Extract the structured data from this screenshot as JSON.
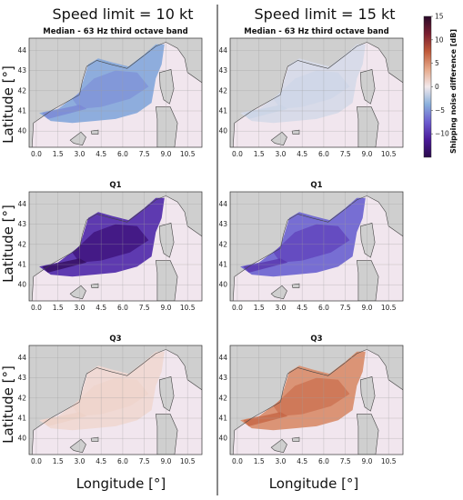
{
  "figure": {
    "column_titles": [
      "Speed limit = 10 kt",
      "Speed limit = 15 kt"
    ],
    "xlabel": "Longitude [°]",
    "ylabel": "Latitude [°]"
  },
  "chart_data": [
    {
      "type": "heatmap",
      "title": "Median - 63 Hz third octave band",
      "column": "Speed limit = 10 kt",
      "row": "Median",
      "typical_difference_dB": -4,
      "xticks": [
        "0.0",
        "1.5",
        "3.0",
        "4.5",
        "6.0",
        "7.5",
        "9.0",
        "10.5"
      ],
      "yticks": [
        "40",
        "41",
        "42",
        "43",
        "44"
      ],
      "xlim": [
        -0.5,
        11.5
      ],
      "ylim": [
        39.2,
        44.6
      ]
    },
    {
      "type": "heatmap",
      "title": "Median - 63 Hz third octave band",
      "column": "Speed limit = 15 kt",
      "row": "Median",
      "typical_difference_dB": -1,
      "xticks": [
        "0.0",
        "1.5",
        "3.0",
        "4.5",
        "6.0",
        "7.5",
        "9.0",
        "10.5"
      ],
      "yticks": [
        "40",
        "41",
        "42",
        "43",
        "44"
      ],
      "xlim": [
        -0.5,
        11.5
      ],
      "ylim": [
        39.2,
        44.6
      ]
    },
    {
      "type": "heatmap",
      "title": "Q1",
      "column": "Speed limit = 10 kt",
      "row": "Q1",
      "typical_difference_dB": -10,
      "xticks": [
        "0.0",
        "1.5",
        "3.0",
        "4.5",
        "6.0",
        "7.5",
        "9.0",
        "10.5"
      ],
      "yticks": [
        "40",
        "41",
        "42",
        "43",
        "44"
      ],
      "xlim": [
        -0.5,
        11.5
      ],
      "ylim": [
        39.2,
        44.6
      ]
    },
    {
      "type": "heatmap",
      "title": "Q1",
      "column": "Speed limit = 15 kt",
      "row": "Q1",
      "typical_difference_dB": -7,
      "xticks": [
        "0.0",
        "1.5",
        "3.0",
        "4.5",
        "6.0",
        "7.5",
        "9.0",
        "10.5"
      ],
      "yticks": [
        "40",
        "41",
        "42",
        "43",
        "44"
      ],
      "xlim": [
        -0.5,
        11.5
      ],
      "ylim": [
        39.2,
        44.6
      ]
    },
    {
      "type": "heatmap",
      "title": "Q3",
      "column": "Speed limit = 10 kt",
      "row": "Q3",
      "typical_difference_dB": 1,
      "xticks": [
        "0.0",
        "1.5",
        "3.0",
        "4.5",
        "6.0",
        "7.5",
        "9.0",
        "10.5"
      ],
      "yticks": [
        "40",
        "41",
        "42",
        "43",
        "44"
      ],
      "xlim": [
        -0.5,
        11.5
      ],
      "ylim": [
        39.2,
        44.6
      ]
    },
    {
      "type": "heatmap",
      "title": "Q3",
      "column": "Speed limit = 15 kt",
      "row": "Q3",
      "typical_difference_dB": 5,
      "xticks": [
        "0.0",
        "1.5",
        "3.0",
        "4.5",
        "6.0",
        "7.5",
        "9.0",
        "10.5"
      ],
      "yticks": [
        "40",
        "41",
        "42",
        "43",
        "44"
      ],
      "xlim": [
        -0.5,
        11.5
      ],
      "ylim": [
        39.2,
        44.6
      ]
    }
  ],
  "colorbar": {
    "label": "Shipping noise difference [dB]",
    "ticks": [
      15,
      10,
      5,
      0,
      -5,
      -10
    ],
    "range": [
      -15,
      15
    ],
    "colors": [
      "#2a0a4a",
      "#4a1a9a",
      "#6c5ccf",
      "#8ab0dc",
      "#f2e9ec",
      "#e6a98a",
      "#c05a3a",
      "#7a1e30",
      "#2a0a2a"
    ]
  },
  "colors": {
    "land": "#cfcfcf",
    "no_data": "#f1e6ee",
    "coast": "#444444",
    "grid": "#9e9e9e"
  }
}
